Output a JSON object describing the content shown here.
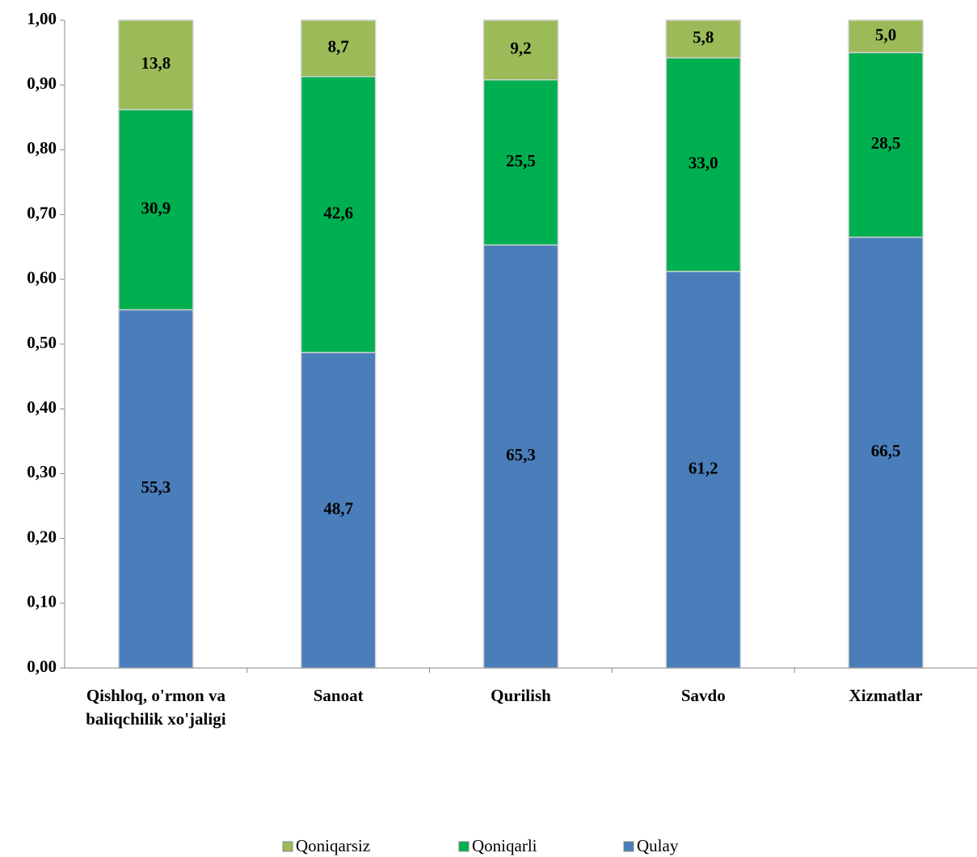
{
  "chart_data": {
    "type": "stacked_bar",
    "categories": [
      "Qishloq, o'rmon va baliqchilik xo'jaligi",
      "Sanoat",
      "Qurilish",
      "Savdo",
      "Xizmatlar"
    ],
    "series": [
      {
        "name": "Qulay",
        "color": "#4a7ebb",
        "values": [
          0.553,
          0.487,
          0.653,
          0.612,
          0.665
        ],
        "value_labels": [
          "55,3",
          "48,7",
          "65,3",
          "61,2",
          "66,5"
        ]
      },
      {
        "name": "Qoniqarli",
        "color": "#00b050",
        "values": [
          0.309,
          0.426,
          0.255,
          0.33,
          0.285
        ],
        "value_labels": [
          "30,9",
          "42,6",
          "25,5",
          "33,0",
          "28,5"
        ]
      },
      {
        "name": "Qoniqarsiz",
        "color": "#9bbb59",
        "values": [
          0.138,
          0.087,
          0.092,
          0.058,
          0.05
        ],
        "value_labels": [
          "13,8",
          "8,7",
          "9,2",
          "5,8",
          "5,0"
        ]
      }
    ],
    "ylim": [
      0,
      1
    ],
    "yticks": [
      {
        "value": 0,
        "label": "0,00"
      },
      {
        "value": 0.1,
        "label": "0,10"
      },
      {
        "value": 0.2,
        "label": "0,20"
      },
      {
        "value": 0.3,
        "label": "0,30"
      },
      {
        "value": 0.4,
        "label": "0,40"
      },
      {
        "value": 0.5,
        "label": "0,50"
      },
      {
        "value": 0.6,
        "label": "0,60"
      },
      {
        "value": 0.7,
        "label": "0,70"
      },
      {
        "value": 0.8,
        "label": "0,80"
      },
      {
        "value": 0.9,
        "label": "0,90"
      },
      {
        "value": 1,
        "label": "1,00"
      }
    ],
    "legend": "bottom"
  }
}
